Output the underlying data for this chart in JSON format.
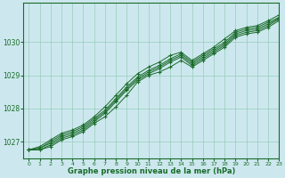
{
  "xlabel": "Graphe pression niveau de la mer (hPa)",
  "bg_color": "#cce8ee",
  "grid_color": "#99ccbb",
  "line_color": "#1a6b2a",
  "marker": "+",
  "xlim": [
    -0.5,
    23
  ],
  "ylim": [
    1026.5,
    1031.2
  ],
  "yticks": [
    1027,
    1028,
    1029,
    1030
  ],
  "xticks": [
    0,
    1,
    2,
    3,
    4,
    5,
    6,
    7,
    8,
    9,
    10,
    11,
    12,
    13,
    14,
    15,
    16,
    17,
    18,
    19,
    20,
    21,
    22,
    23
  ],
  "series": [
    [
      1026.75,
      1026.75,
      1026.85,
      1027.05,
      1027.15,
      1027.3,
      1027.55,
      1027.75,
      1028.05,
      1028.4,
      1028.8,
      1029.0,
      1029.1,
      1029.25,
      1029.45,
      1029.25,
      1029.45,
      1029.65,
      1029.85,
      1030.15,
      1030.25,
      1030.3,
      1030.45,
      1030.65
    ],
    [
      1026.75,
      1026.75,
      1026.9,
      1027.1,
      1027.2,
      1027.35,
      1027.6,
      1027.85,
      1028.2,
      1028.55,
      1028.85,
      1029.05,
      1029.2,
      1029.4,
      1029.55,
      1029.3,
      1029.5,
      1029.7,
      1029.9,
      1030.2,
      1030.3,
      1030.35,
      1030.5,
      1030.7
    ],
    [
      1026.75,
      1026.8,
      1026.95,
      1027.15,
      1027.25,
      1027.4,
      1027.65,
      1027.9,
      1028.25,
      1028.6,
      1028.9,
      1029.1,
      1029.25,
      1029.45,
      1029.6,
      1029.35,
      1029.55,
      1029.75,
      1029.95,
      1030.25,
      1030.35,
      1030.4,
      1030.55,
      1030.72
    ],
    [
      1026.75,
      1026.8,
      1027.0,
      1027.2,
      1027.3,
      1027.45,
      1027.7,
      1027.95,
      1028.3,
      1028.65,
      1028.95,
      1029.15,
      1029.3,
      1029.5,
      1029.65,
      1029.4,
      1029.6,
      1029.8,
      1030.0,
      1030.3,
      1030.4,
      1030.45,
      1030.6,
      1030.75
    ],
    [
      1026.75,
      1026.85,
      1027.05,
      1027.25,
      1027.35,
      1027.5,
      1027.75,
      1028.05,
      1028.4,
      1028.75,
      1029.05,
      1029.25,
      1029.4,
      1029.6,
      1029.7,
      1029.45,
      1029.65,
      1029.85,
      1030.1,
      1030.35,
      1030.45,
      1030.5,
      1030.65,
      1030.82
    ]
  ]
}
